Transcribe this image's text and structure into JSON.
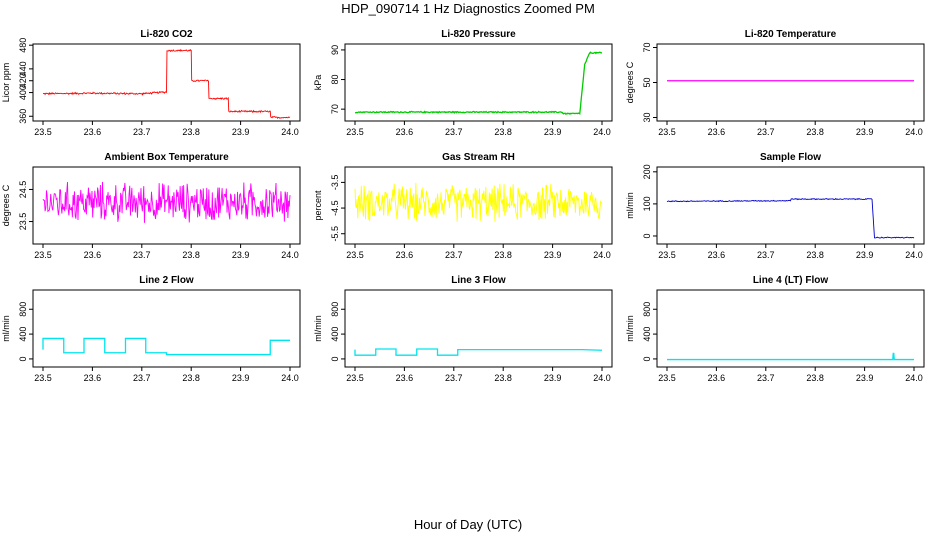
{
  "title": "HDP_090714  1 Hz Diagnostics Zoomed PM",
  "xlabel": "Hour of Day (UTC)",
  "chart_data": [
    {
      "type": "line",
      "title": "Li-820 CO2",
      "ylabel": "Licor ppm",
      "color": "#ff0000",
      "xlim": [
        23.5,
        24.0
      ],
      "ylim": [
        352,
        482
      ],
      "xticks": [
        "23.5",
        "23.6",
        "23.7",
        "23.8",
        "23.9",
        "24.0"
      ],
      "yticks": [
        360,
        400,
        420,
        440,
        480
      ],
      "x": [
        23.5,
        23.6,
        23.7,
        23.75,
        23.751,
        23.8,
        23.801,
        23.835,
        23.836,
        23.875,
        23.876,
        23.96,
        23.961,
        24.0
      ],
      "y": [
        398,
        399,
        398,
        401,
        471,
        471,
        420,
        420,
        390,
        390,
        368,
        368,
        358,
        358
      ],
      "noise": 1.5
    },
    {
      "type": "line",
      "title": "Li-820 Pressure",
      "ylabel": "kPa",
      "color": "#00cc00",
      "xlim": [
        23.5,
        24.0
      ],
      "ylim": [
        66,
        92
      ],
      "xticks": [
        "23.5",
        "23.6",
        "23.7",
        "23.8",
        "23.9",
        "24.0"
      ],
      "yticks": [
        70,
        80,
        90
      ],
      "x": [
        23.5,
        23.92,
        23.921,
        23.955,
        23.965,
        23.975,
        24.0
      ],
      "y": [
        69,
        69,
        68.5,
        68.5,
        85,
        89,
        89
      ],
      "noise": 0.2
    },
    {
      "type": "line",
      "title": "Li-820 Temperature",
      "ylabel": "degrees C",
      "color": "#ff00ff",
      "xlim": [
        23.5,
        24.0
      ],
      "ylim": [
        28,
        72
      ],
      "xticks": [
        "23.5",
        "23.6",
        "23.7",
        "23.8",
        "23.9",
        "24.0"
      ],
      "yticks": [
        30,
        50,
        70
      ],
      "x": [
        23.5,
        24.0
      ],
      "y": [
        51,
        51
      ],
      "noise": 0
    },
    {
      "type": "line",
      "title": "Ambient Box Temperature",
      "ylabel": "degrees C",
      "color": "#ff00ff",
      "xlim": [
        23.5,
        24.0
      ],
      "ylim": [
        22.8,
        25.2
      ],
      "xticks": [
        "23.5",
        "23.6",
        "23.7",
        "23.8",
        "23.9",
        "24.0"
      ],
      "yticks": [
        23.5,
        24.5
      ],
      "x": [
        23.5,
        24.0
      ],
      "y": [
        24.1,
        24.1
      ],
      "noise": 0.55
    },
    {
      "type": "line",
      "title": "Gas Stream RH",
      "ylabel": "percent",
      "color": "#ffff00",
      "xlim": [
        23.5,
        24.0
      ],
      "ylim": [
        -5.9,
        -2.9
      ],
      "xticks": [
        "23.5",
        "23.6",
        "23.7",
        "23.8",
        "23.9",
        "24.0"
      ],
      "yticks": [
        -5.5,
        -4.5,
        -3.5
      ],
      "x": [
        23.5,
        24.0
      ],
      "y": [
        -4.3,
        -4.3
      ],
      "noise": 0.65
    },
    {
      "type": "line",
      "title": "Sample Flow",
      "ylabel": "ml/min",
      "color": "#0000cc",
      "xlim": [
        23.5,
        24.0
      ],
      "ylim": [
        -25,
        215
      ],
      "xticks": [
        "23.5",
        "23.6",
        "23.7",
        "23.8",
        "23.9",
        "24.0"
      ],
      "yticks": [
        0,
        100,
        200
      ],
      "x": [
        23.5,
        23.75,
        23.751,
        23.915,
        23.92,
        24.0
      ],
      "y": [
        108,
        110,
        115,
        115,
        -5,
        -5
      ],
      "noise": 1.5
    },
    {
      "type": "line",
      "title": "Line 2 Flow",
      "ylabel": "ml/min",
      "color": "#00e5ee",
      "xlim": [
        23.5,
        24.0
      ],
      "ylim": [
        -130,
        1110
      ],
      "xticks": [
        "23.5",
        "23.6",
        "23.7",
        "23.8",
        "23.9",
        "24.0"
      ],
      "yticks": [
        0,
        400,
        800
      ],
      "x": [
        23.5,
        23.5,
        23.542,
        23.542,
        23.583,
        23.583,
        23.625,
        23.625,
        23.667,
        23.667,
        23.708,
        23.708,
        23.75,
        23.75,
        23.96,
        23.96,
        24.0
      ],
      "y": [
        150,
        330,
        330,
        100,
        100,
        330,
        330,
        100,
        100,
        330,
        330,
        100,
        100,
        70,
        70,
        300,
        300
      ],
      "noise": 0
    },
    {
      "type": "line",
      "title": "Line 3 Flow",
      "ylabel": "ml/min",
      "color": "#00e5ee",
      "xlim": [
        23.5,
        24.0
      ],
      "ylim": [
        -130,
        1110
      ],
      "xticks": [
        "23.5",
        "23.6",
        "23.7",
        "23.8",
        "23.9",
        "24.0"
      ],
      "yticks": [
        0,
        400,
        800
      ],
      "x": [
        23.5,
        23.5,
        23.542,
        23.542,
        23.583,
        23.583,
        23.625,
        23.625,
        23.667,
        23.667,
        23.708,
        23.708,
        23.96,
        24.0
      ],
      "y": [
        150,
        60,
        60,
        160,
        160,
        60,
        60,
        160,
        160,
        60,
        60,
        150,
        150,
        140
      ],
      "noise": 0
    },
    {
      "type": "line",
      "title": "Line 4 (LT) Flow",
      "ylabel": "ml/min",
      "color": "#00e5ee",
      "xlim": [
        23.5,
        24.0
      ],
      "ylim": [
        -130,
        1110
      ],
      "xticks": [
        "23.5",
        "23.6",
        "23.7",
        "23.8",
        "23.9",
        "24.0"
      ],
      "yticks": [
        0,
        400,
        800
      ],
      "x": [
        23.5,
        23.957,
        23.958,
        23.959,
        23.96,
        24.0
      ],
      "y": [
        -10,
        -10,
        90,
        90,
        -10,
        -10
      ],
      "noise": 0
    }
  ]
}
